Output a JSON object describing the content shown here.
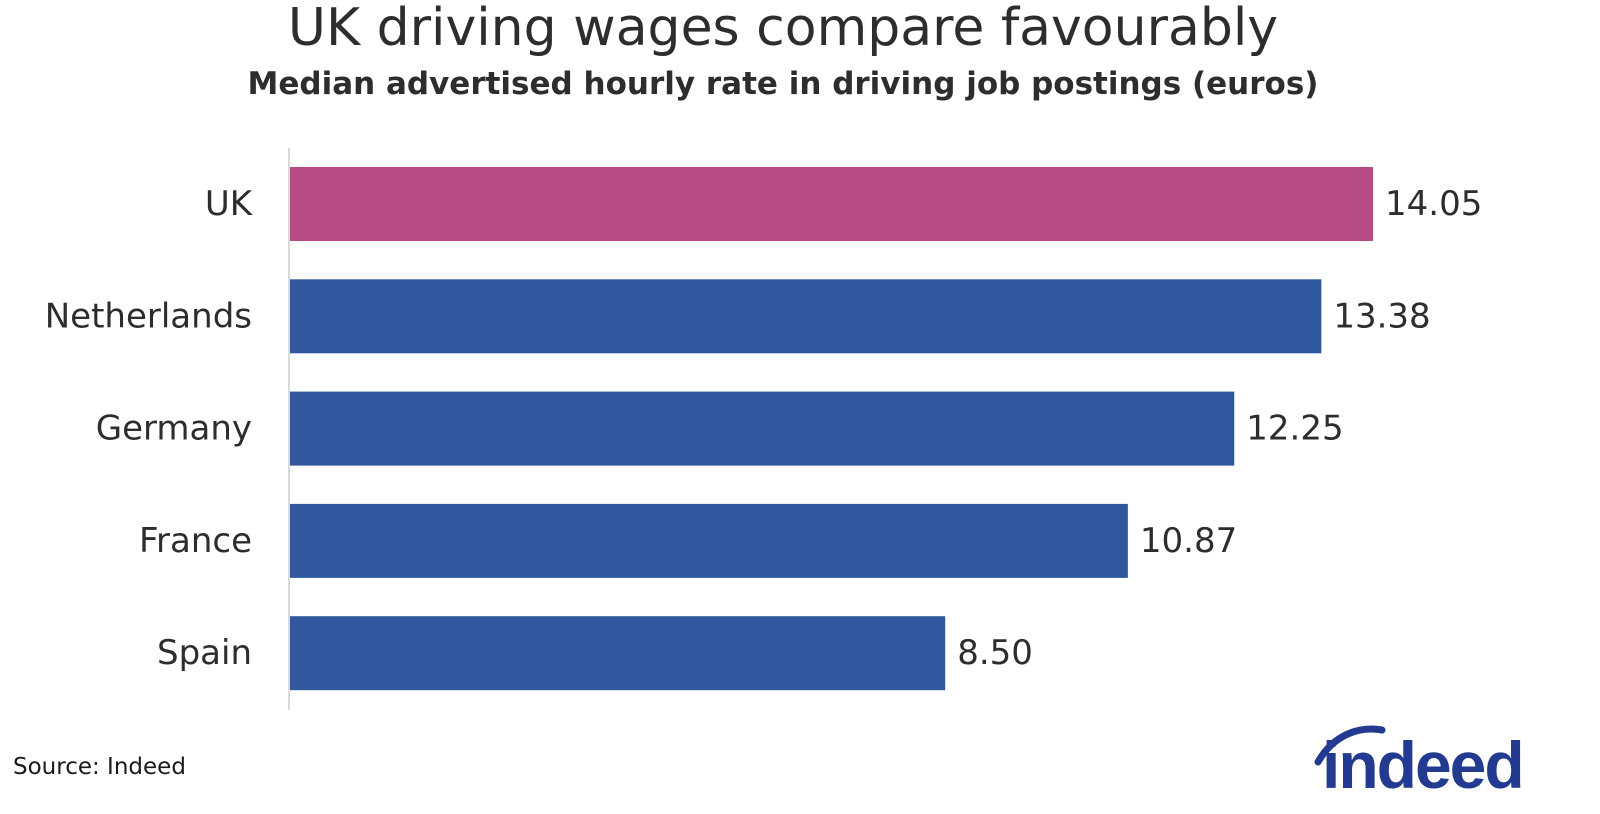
{
  "title": "UK driving wages compare favourably",
  "subtitle": "Median advertised hourly rate in driving job postings (euros)",
  "source": "Source: Indeed",
  "logo": {
    "text": "indeed"
  },
  "colors": {
    "highlight": "#b84d85",
    "primary": "#30589f",
    "axis": "#d9d9d9",
    "text": "#2d2d2d",
    "logo": "#223a8f"
  },
  "chart_data": {
    "type": "bar",
    "orientation": "horizontal",
    "title": "UK driving wages compare favourably",
    "subtitle": "Median advertised hourly rate in driving job postings (euros)",
    "categories": [
      "UK",
      "Netherlands",
      "Germany",
      "France",
      "Spain"
    ],
    "values": [
      14.05,
      13.38,
      12.25,
      10.87,
      8.5
    ],
    "value_labels": [
      "14.05",
      "13.38",
      "12.25",
      "10.87",
      "8.50"
    ],
    "highlight_category": "UK",
    "xlabel": "",
    "ylabel": "",
    "xlim": [
      0,
      14.05
    ],
    "grid": false,
    "legend": "none"
  }
}
